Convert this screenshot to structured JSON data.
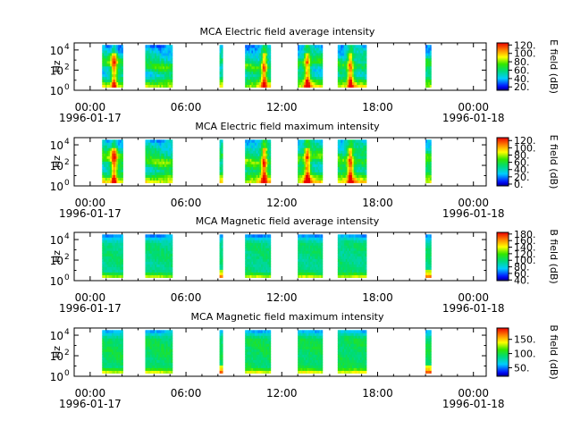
{
  "chart_data": [
    {
      "type": "heatmap",
      "title": "MCA  Electric field average intensity",
      "ylabel": "Hz",
      "colorbar_label": "E field (dB)",
      "colorbar_ticks": [
        "20.",
        "40.",
        "60.",
        "80.",
        "100.",
        "120."
      ],
      "colorbar_range": [
        12,
        125
      ],
      "kind": "E-avg"
    },
    {
      "type": "heatmap",
      "title": "MCA  Electric field maximum intensity",
      "ylabel": "Hz",
      "colorbar_label": "E field (dB)",
      "colorbar_ticks": [
        "0.",
        "20.",
        "40.",
        "60.",
        "80.",
        "100.",
        "120."
      ],
      "colorbar_range": [
        -5,
        128
      ],
      "kind": "E-max"
    },
    {
      "type": "heatmap",
      "title": "MCA  Magnetic field average intensity",
      "ylabel": "Hz",
      "colorbar_label": "B field (dB)",
      "colorbar_ticks": [
        "40.",
        "60.",
        "80.",
        "100.",
        "120.",
        "140.",
        "160.",
        "180."
      ],
      "colorbar_range": [
        38,
        185
      ],
      "kind": "B-avg"
    },
    {
      "type": "heatmap",
      "title": "MCA  Magnetic field maximum intensity",
      "ylabel": "Hz",
      "colorbar_label": "B field (dB)",
      "colorbar_ticks": [
        "50.",
        "100.",
        "150."
      ],
      "colorbar_range": [
        20,
        190
      ],
      "kind": "B-max"
    }
  ],
  "shared": {
    "x_range_hours": [
      -1,
      24.8
    ],
    "x_ticks": [
      {
        "hour": 0,
        "time": "00:00",
        "date": "1996-01-17"
      },
      {
        "hour": 6,
        "time": "06:00",
        "date": ""
      },
      {
        "hour": 12,
        "time": "12:00",
        "date": ""
      },
      {
        "hour": 18,
        "time": "18:00",
        "date": ""
      },
      {
        "hour": 24,
        "time": "00:00",
        "date": "1996-01-18"
      }
    ],
    "y_range_log10": [
      0,
      4.7
    ],
    "y_ticks": [
      {
        "exp": 0,
        "base": "10",
        "power": "0"
      },
      {
        "exp": 2,
        "base": "10",
        "power": "2"
      },
      {
        "exp": 4,
        "base": "10",
        "power": "4"
      }
    ],
    "data_blocks_hours": [
      [
        0.75,
        2.05
      ],
      [
        3.45,
        5.15
      ],
      [
        8.1,
        8.3
      ],
      [
        9.7,
        11.3
      ],
      [
        13.0,
        14.55
      ],
      [
        15.5,
        17.3
      ],
      [
        21.0,
        21.35
      ]
    ],
    "freq_range_log10": [
      0.3,
      4.5
    ]
  }
}
